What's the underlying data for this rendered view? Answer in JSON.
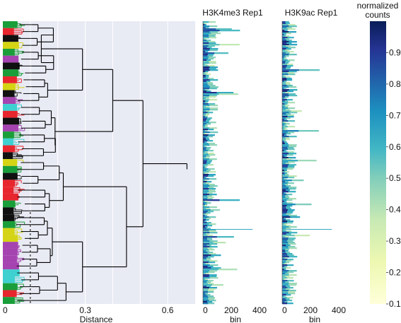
{
  "chart_data": [
    {
      "type": "dendrogram",
      "xlabel": "Distance",
      "xlim": [
        0,
        0.7
      ],
      "xticks": [
        0,
        0.3,
        0.6
      ],
      "xtick_labels": [
        "0",
        "0.3",
        "0.6"
      ],
      "cut_threshold": 0.1,
      "grid": true,
      "cluster_colors": [
        "#1a9e3a",
        "#d4d414",
        "#a544b0",
        "#3fd0d0",
        "#e8262e",
        "#111111"
      ],
      "cluster_sequence": [
        "green",
        "red",
        "black",
        "yellow",
        "green",
        "purple",
        "black",
        "green",
        "red",
        "yellow",
        "black",
        "purple",
        "cyan",
        "red",
        "black",
        "purple",
        "green",
        "cyan",
        "red",
        "black",
        "yellow",
        "green",
        "black",
        "red",
        "red",
        "red",
        "green",
        "black",
        "black",
        "green",
        "yellow",
        "yellow",
        "purple",
        "purple",
        "purple",
        "purple",
        "cyan",
        "cyan",
        "green",
        "red",
        "green"
      ],
      "merge_distances": {
        "root": 0.67,
        "upper_lower": 0.51,
        "top_group": 0.4,
        "middle_group": 0.29,
        "lower_group": 0.22,
        "bottom_group": 0.18,
        "sub_a": 0.29,
        "sub_b": 0.23,
        "sub_c": 0.19,
        "sub_d": 0.14
      }
    },
    {
      "type": "heatmap",
      "title": "H3K4me3 Rep1",
      "xlabel": "bin",
      "xlim": [
        0,
        450
      ],
      "xticks": [
        0,
        200,
        400
      ],
      "xtick_labels": [
        "0",
        "200",
        "400"
      ],
      "colorscale": "YlGnBu",
      "profile_peak_bin": 40,
      "profile_spread_bins": 60,
      "mean_max_normalized": 0.9
    },
    {
      "type": "heatmap",
      "title": "H3K9ac Rep1",
      "xlabel": "bin",
      "xlim": [
        0,
        450
      ],
      "xticks": [
        0,
        200,
        400
      ],
      "xtick_labels": [
        "0",
        "200",
        "400"
      ],
      "colorscale": "YlGnBu",
      "profile_peak_bin": 35,
      "profile_spread_bins": 60,
      "mean_max_normalized": 0.9
    },
    {
      "type": "colorbar",
      "title": "normalized\ncounts",
      "range": [
        0.1,
        1.0
      ],
      "ticks": [
        0.1,
        0.2,
        0.3,
        0.4,
        0.5,
        0.6,
        0.7,
        0.8,
        0.9
      ],
      "tick_labels": [
        "0.1",
        "0.2",
        "0.3",
        "0.4",
        "0.5",
        "0.6",
        "0.7",
        "0.8",
        "0.9"
      ],
      "colors": [
        "#ffffd9",
        "#edf8b1",
        "#c7e9b4",
        "#7fcdbb",
        "#41b6c4",
        "#1d91c0",
        "#225ea8",
        "#253494",
        "#081d58"
      ]
    }
  ]
}
